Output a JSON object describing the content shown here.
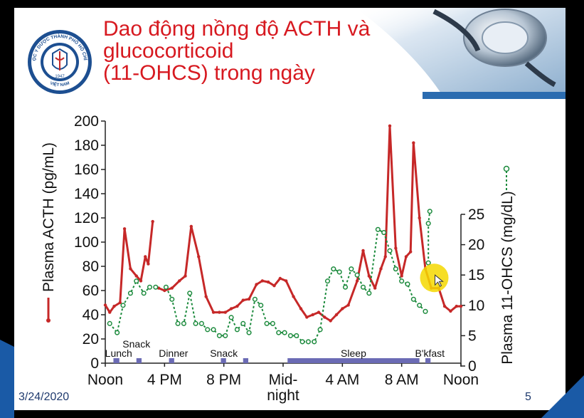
{
  "slide": {
    "title": "Dao động nồng độ ACTH và\nglucocorticoid\n(11-OHCS) trong ngày",
    "date": "3/24/2020",
    "page_number": "5",
    "logo_text_top": "ĐẠI HỌC Y DƯỢC THÀNH PHỐ HỒ CHÍ MINH",
    "logo_text_bottom": "VIỆT NAM",
    "logo_year": "1947",
    "logo_icon": "university-seal-icon",
    "header_decoration": "stethoscope-photo",
    "accent_color": "#d71920"
  },
  "chart_data": {
    "type": "line",
    "x_ticks": [
      {
        "label": "Noon",
        "hour": 0
      },
      {
        "label": "4 PM",
        "hour": 4
      },
      {
        "label": "8 PM",
        "hour": 8
      },
      {
        "label": "Mid-\nnight",
        "hour": 12
      },
      {
        "label": "4 AM",
        "hour": 16
      },
      {
        "label": "8 AM",
        "hour": 20
      },
      {
        "label": "Noon",
        "hour": 24
      }
    ],
    "y_left": {
      "label": "Plasma ACTH (pg/mL)",
      "range": [
        0,
        200
      ],
      "ticks": [
        0,
        20,
        40,
        60,
        80,
        100,
        120,
        140,
        160,
        180,
        200
      ]
    },
    "y_right": {
      "label": "Plasma 11-OHCS (mg/dL)",
      "range": [
        0,
        25
      ],
      "ticks": [
        0,
        5,
        10,
        15,
        20,
        25
      ]
    },
    "series": [
      {
        "axis": "left",
        "color": "#c62828",
        "segments": [
          [
            [
              0,
              48
            ],
            [
              0.3,
              42
            ],
            [
              0.6,
              47
            ],
            [
              1.0,
              50
            ],
            [
              1.3,
              111
            ],
            [
              1.7,
              78
            ],
            [
              2.1,
              72
            ],
            [
              2.4,
              68
            ],
            [
              2.7,
              88
            ],
            [
              2.9,
              82
            ],
            [
              3.2,
              117
            ]
          ],
          [
            [
              3.6,
              62
            ],
            [
              4.0,
              60
            ],
            [
              4.5,
              62
            ],
            [
              5.0,
              68
            ],
            [
              5.4,
              72
            ],
            [
              5.8,
              113
            ],
            [
              6.3,
              88
            ],
            [
              6.8,
              55
            ],
            [
              7.3,
              42
            ],
            [
              7.7,
              42
            ],
            [
              8.1,
              42
            ],
            [
              8.5,
              45
            ],
            [
              8.9,
              47
            ],
            [
              9.3,
              52
            ],
            [
              9.7,
              53
            ],
            [
              10.2,
              65
            ],
            [
              10.6,
              68
            ],
            [
              11.0,
              67
            ],
            [
              11.4,
              64
            ],
            [
              11.8,
              70
            ],
            [
              12.2,
              68
            ],
            [
              12.7,
              55
            ],
            [
              13.2,
              45
            ],
            [
              13.6,
              38
            ],
            [
              14.0,
              40
            ],
            [
              14.4,
              42
            ],
            [
              14.8,
              38
            ],
            [
              15.2,
              35
            ],
            [
              15.6,
              40
            ],
            [
              16.0,
              45
            ],
            [
              16.4,
              48
            ],
            [
              17.0,
              68
            ],
            [
              17.4,
              93
            ],
            [
              17.8,
              72
            ],
            [
              18.2,
              62
            ],
            [
              18.6,
              78
            ],
            [
              18.9,
              88
            ],
            [
              19.2,
              196
            ],
            [
              19.6,
              95
            ],
            [
              20.0,
              72
            ],
            [
              20.3,
              88
            ],
            [
              20.6,
              92
            ],
            [
              20.8,
              182
            ],
            [
              21.2,
              120
            ],
            [
              21.6,
              78
            ],
            [
              22.0,
              62
            ],
            [
              22.5,
              62
            ],
            [
              22.9,
              47
            ],
            [
              23.3,
              43
            ],
            [
              23.7,
              47
            ],
            [
              24.0,
              47
            ]
          ]
        ]
      },
      {
        "axis": "right",
        "color": "#1b8a3c",
        "segments": [
          [
            [
              0.3,
              7.0
            ],
            [
              0.8,
              5.5
            ],
            [
              1.2,
              10.0
            ],
            [
              1.7,
              12.0
            ],
            [
              2.1,
              14.0
            ],
            [
              2.6,
              12.0
            ],
            [
              3.0,
              13.0
            ],
            [
              3.4,
              13.0
            ]
          ],
          [
            [
              4.1,
              13.0
            ],
            [
              4.5,
              11.0
            ],
            [
              4.9,
              7.0
            ],
            [
              5.3,
              7.0
            ],
            [
              5.7,
              12.0
            ],
            [
              6.1,
              7.0
            ],
            [
              6.5,
              7.0
            ],
            [
              6.9,
              6.0
            ],
            [
              7.3,
              6.0
            ],
            [
              7.7,
              5.0
            ],
            [
              8.1,
              5.0
            ],
            [
              8.5,
              8.0
            ],
            [
              8.9,
              6.0
            ],
            [
              9.3,
              7.0
            ],
            [
              9.7,
              5.5
            ],
            [
              10.1,
              11.0
            ],
            [
              10.5,
              10.0
            ],
            [
              10.9,
              7.0
            ],
            [
              11.3,
              7.0
            ],
            [
              11.7,
              5.5
            ],
            [
              12.1,
              5.5
            ],
            [
              12.5,
              5.0
            ],
            [
              12.9,
              5.0
            ],
            [
              13.3,
              4.0
            ],
            [
              13.7,
              4.0
            ],
            [
              14.1,
              4.0
            ],
            [
              14.5,
              6.0
            ],
            [
              15.0,
              14.0
            ],
            [
              15.4,
              16.0
            ],
            [
              15.8,
              15.5
            ],
            [
              16.2,
              13.0
            ],
            [
              16.6,
              16.0
            ],
            [
              17.0,
              15.0
            ],
            [
              17.4,
              13.0
            ],
            [
              17.8,
              12.0
            ],
            [
              18.4,
              22.5
            ],
            [
              18.8,
              22.0
            ],
            [
              19.2,
              19.0
            ],
            [
              19.6,
              16.0
            ],
            [
              20.0,
              14.0
            ],
            [
              20.4,
              13.5
            ],
            [
              20.8,
              11.0
            ],
            [
              21.2,
              10.0
            ],
            [
              21.6,
              9.0
            ]
          ],
          [
            [
              21.8,
              17.0
            ],
            [
              21.8,
              23.5
            ],
            [
              21.9,
              25.5
            ]
          ]
        ]
      }
    ],
    "events": [
      {
        "label": "Lunch",
        "hour": 0.9
      },
      {
        "label": "Snack",
        "hour": 2.1
      },
      {
        "label": "Dinner",
        "hour": 4.6
      },
      {
        "label": "Snack",
        "hour": 8.0
      },
      {
        "label": "Sleep",
        "hour_start": 12.3,
        "hour_end": 21.2
      },
      {
        "label": "B'kfast",
        "hour": 21.9
      }
    ],
    "event_bars": [
      [
        0.55,
        0.95
      ],
      [
        2.1,
        2.45
      ],
      [
        4.3,
        4.65
      ],
      [
        7.8,
        8.15
      ],
      [
        9.3,
        9.65
      ],
      [
        12.3,
        21.2
      ],
      [
        21.6,
        21.95
      ]
    ],
    "highlight": {
      "hour": 22.2,
      "value_right": 15,
      "color": "#f5d800"
    }
  }
}
